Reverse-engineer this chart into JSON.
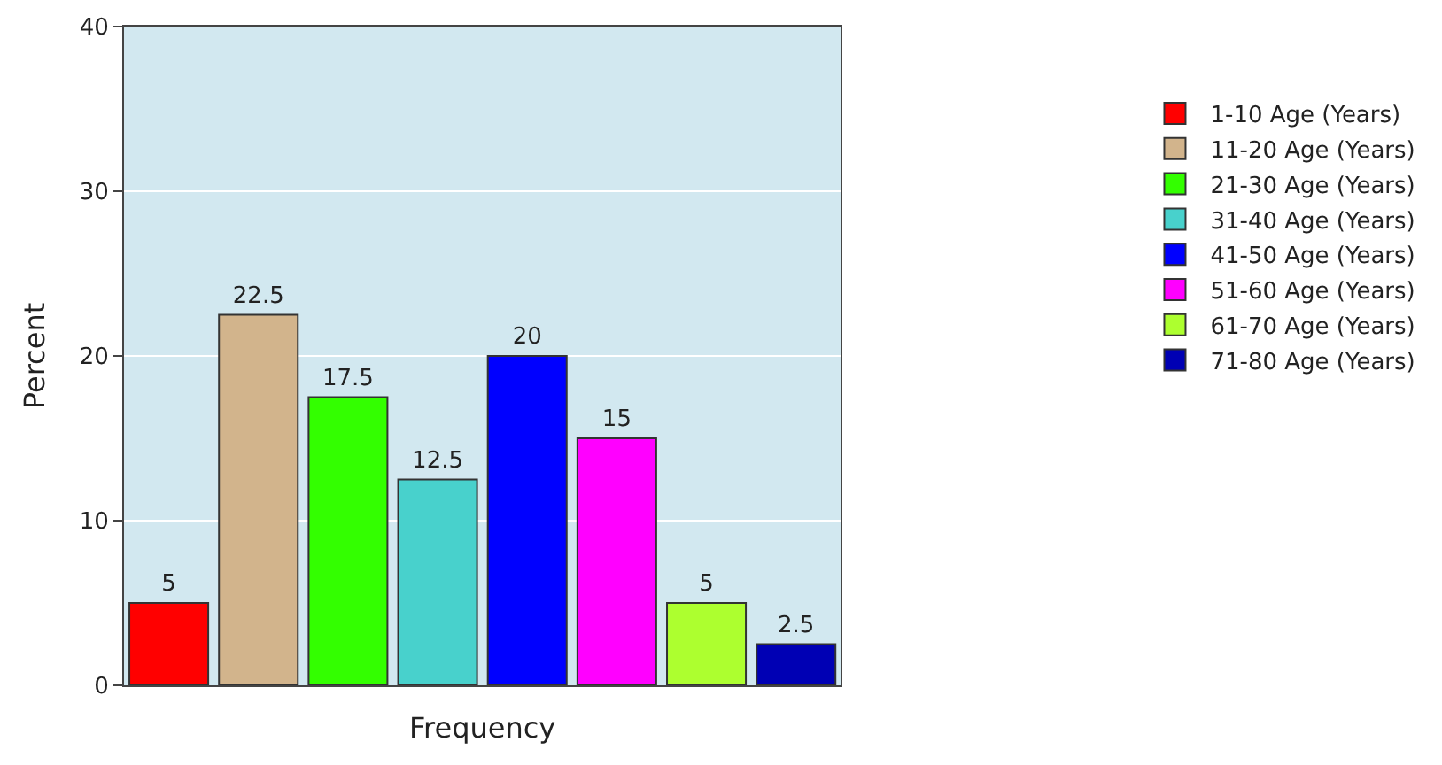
{
  "chart_data": {
    "type": "bar",
    "xlabel": "Frequency",
    "ylabel": "Percent",
    "categories": [
      null
    ],
    "series": [
      {
        "name": "1-10 Age (Years)",
        "color": "#ff0000",
        "values": [
          5
        ]
      },
      {
        "name": "11-20 Age (Years)",
        "color": "#d2b48c",
        "values": [
          22.5
        ]
      },
      {
        "name": "21-30 Age (Years)",
        "color": "#33ff00",
        "values": [
          17.5
        ]
      },
      {
        "name": "31-40 Age (Years)",
        "color": "#48d1cc",
        "values": [
          12.5
        ]
      },
      {
        "name": "41-50 Age (Years)",
        "color": "#0000ff",
        "values": [
          20
        ]
      },
      {
        "name": "51-60 Age (Years)",
        "color": "#ff00ff",
        "values": [
          15
        ]
      },
      {
        "name": "61-70 Age (Years)",
        "color": "#adff2f",
        "values": [
          5
        ]
      },
      {
        "name": "71-80 Age (Years)",
        "color": "#0000b4",
        "values": [
          2.5
        ]
      }
    ],
    "ylim": [
      0,
      40
    ],
    "yticks": [
      0,
      10,
      20,
      30,
      40
    ],
    "grid": "y",
    "legend": "right",
    "data_labels": true
  }
}
